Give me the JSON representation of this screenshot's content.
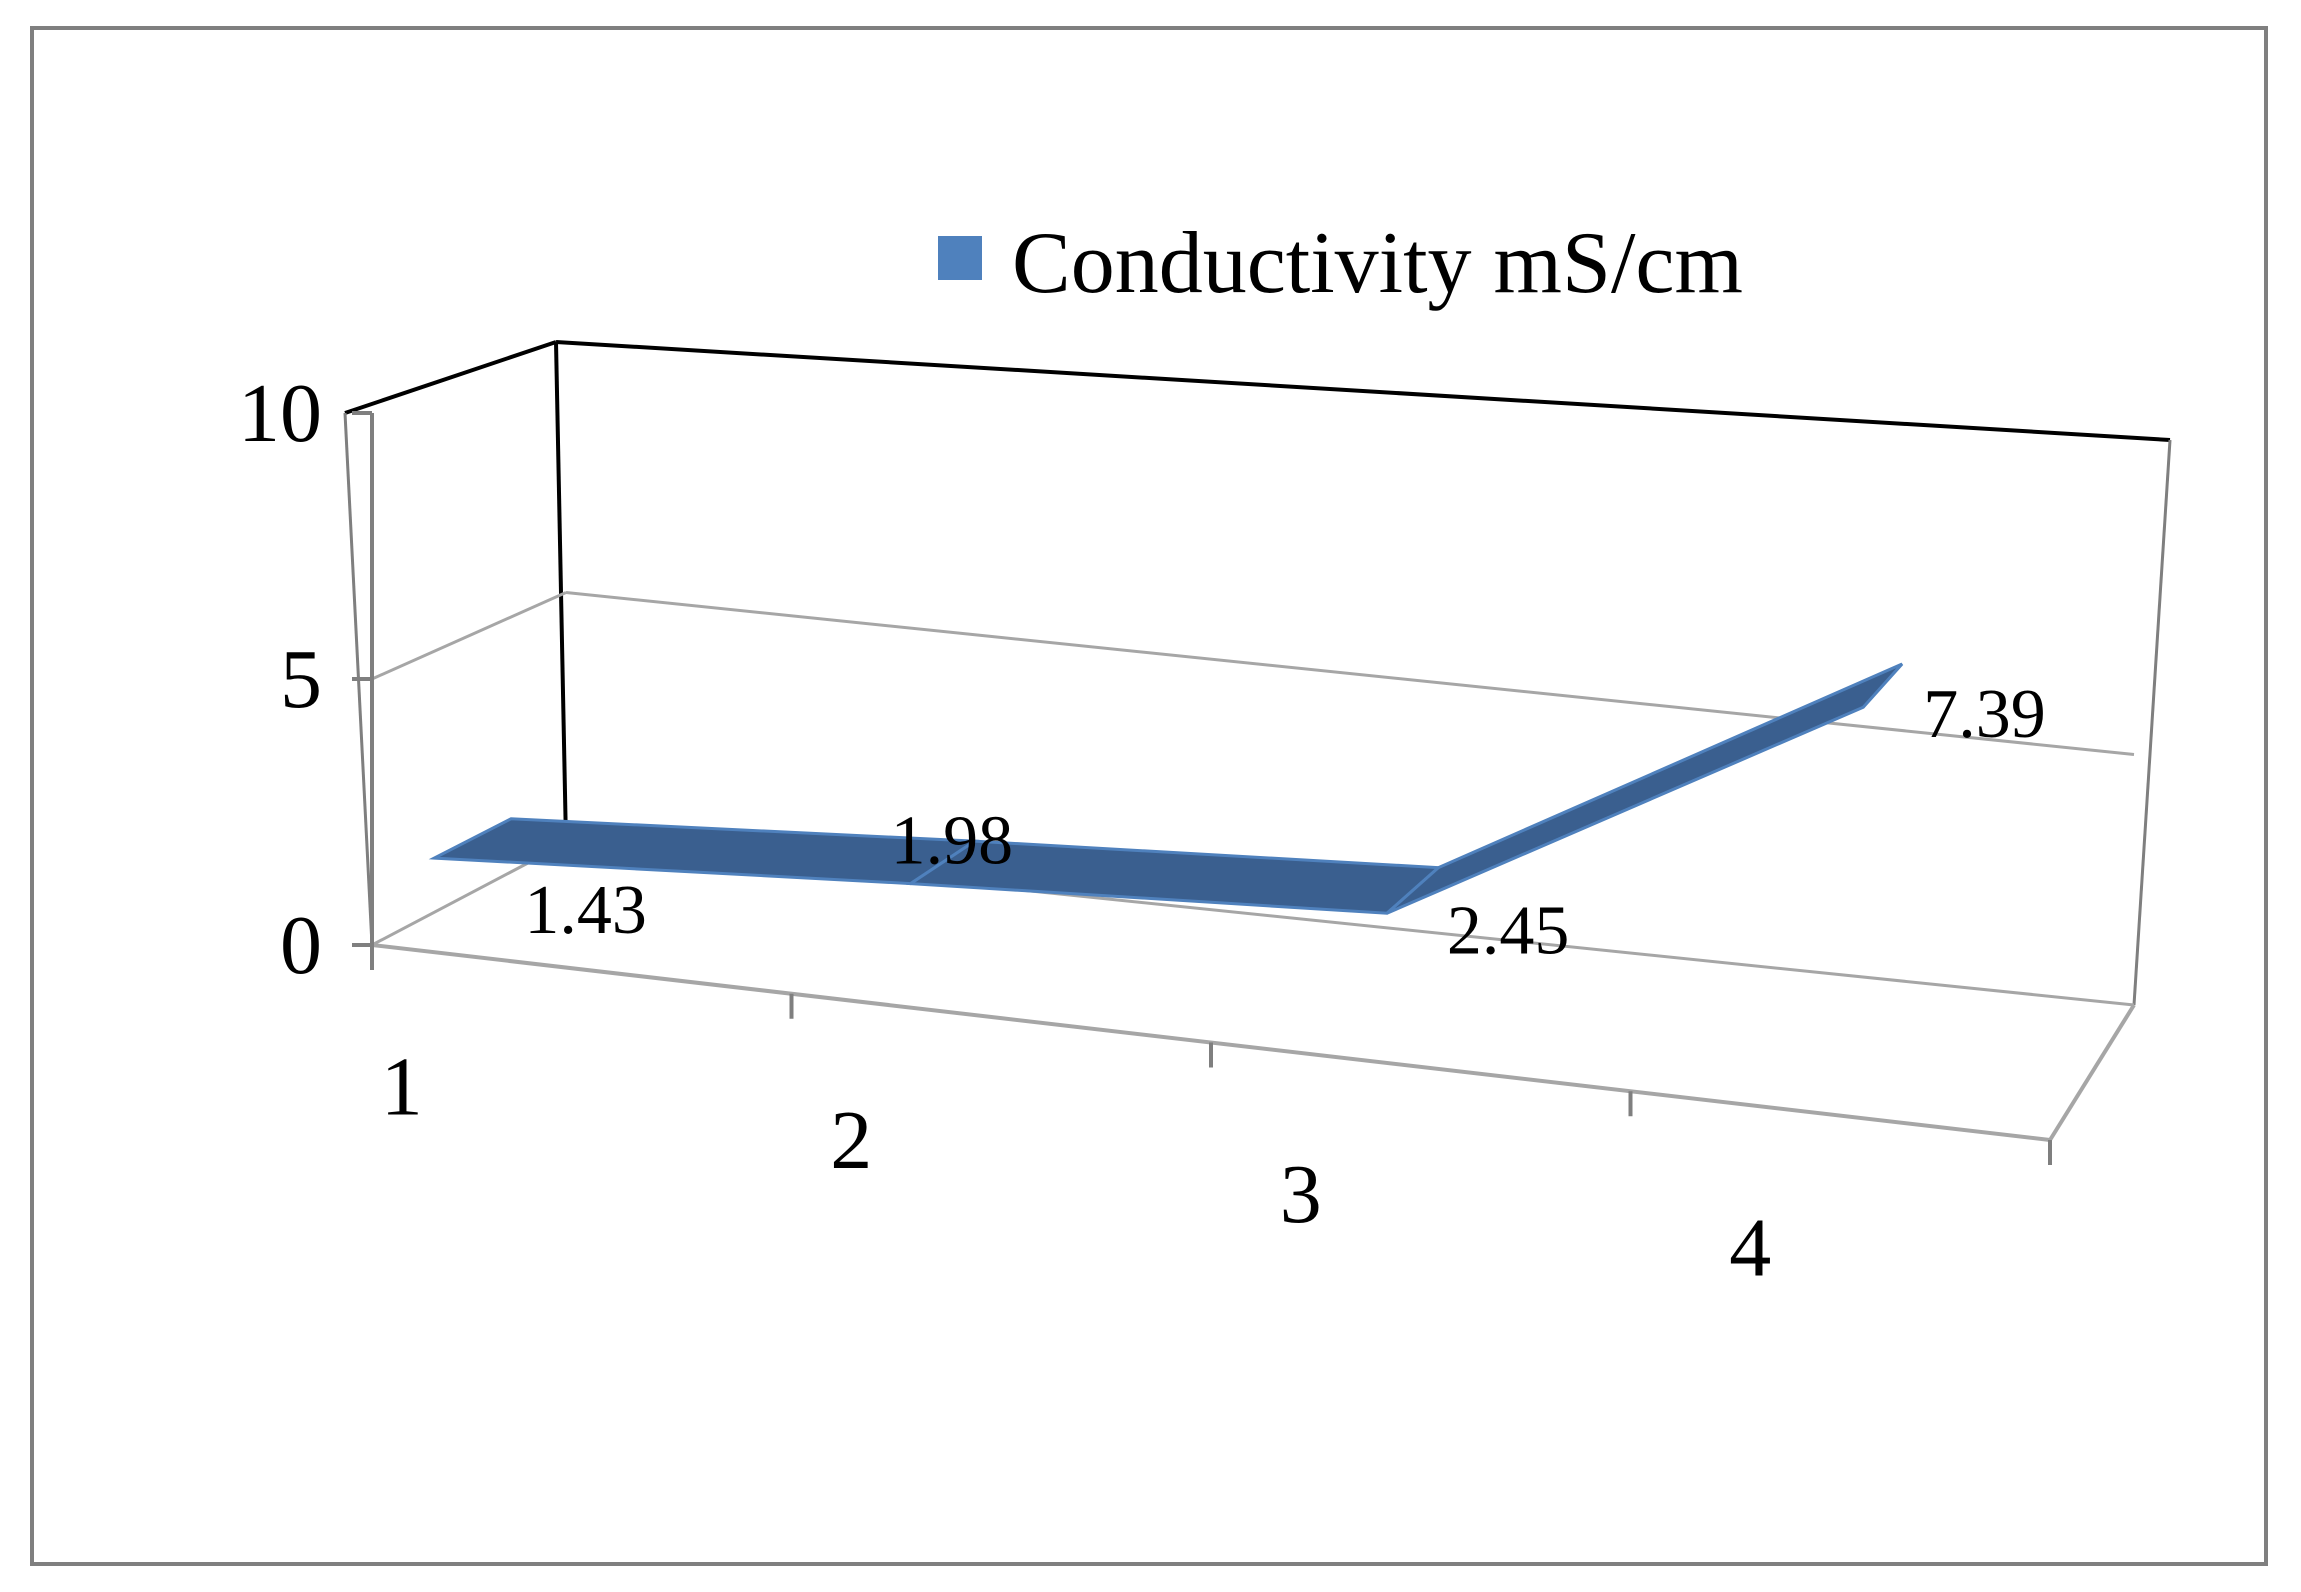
{
  "chart_data": {
    "type": "line",
    "style": "3d-ribbon",
    "categories": [
      "1",
      "2",
      "3",
      "4"
    ],
    "series": [
      {
        "name": "Conductivity mS/cm",
        "values": [
          1.43,
          1.98,
          2.45,
          7.39
        ],
        "color": "#4f81bd"
      }
    ],
    "data_labels": [
      "1.43",
      "1.98",
      "2.45",
      "7.39"
    ],
    "ylim": [
      0,
      10
    ],
    "yticks": [
      "0",
      "5",
      "10"
    ],
    "grid": true,
    "legend_position": "top",
    "title": "",
    "xlabel": "",
    "ylabel": ""
  },
  "colors": {
    "ribbon_top": "#4f81bd",
    "ribbon_side": "#3a5f8f",
    "frame_border": "#7f7f7f",
    "gridline": "#a6a6a6",
    "axis_dark": "#000000"
  }
}
